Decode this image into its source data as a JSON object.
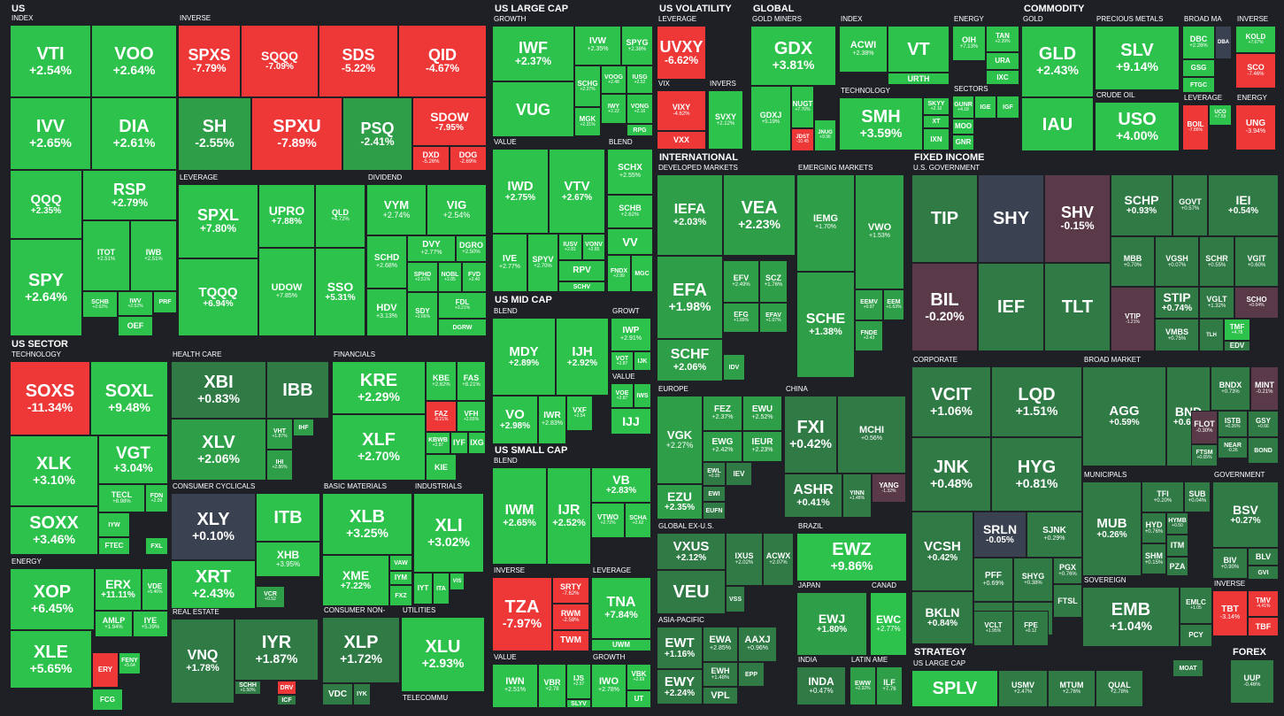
{
  "colors": {
    "up_strong": "#2dc24c",
    "up_mid": "#2f9e48",
    "up_weak": "#2f7a45",
    "flat": "#3a4150",
    "down_weak": "#5a3a48",
    "down_mid": "#c43b3b",
    "down_strong": "#ee3838",
    "background": "#1e2026"
  },
  "sectors": [
    {
      "label": "US"
    },
    {
      "label": "US LARGE CAP"
    },
    {
      "label": "US VOLATILITY"
    },
    {
      "label": "GLOBAL"
    },
    {
      "label": "COMMODITY"
    },
    {
      "label": "US SECTOR"
    },
    {
      "label": "INTERNATIONAL"
    },
    {
      "label": "FIXED INCOME"
    },
    {
      "label": "US MID CAP"
    },
    {
      "label": "US SMALL CAP"
    },
    {
      "label": "STRATEGY"
    },
    {
      "label": "FOREX"
    }
  ],
  "groups": [
    {
      "label": "INDEX"
    },
    {
      "label": "INVERSE"
    },
    {
      "label": "LEVERAGE"
    },
    {
      "label": "DIVIDEND"
    },
    {
      "label": "GROWTH"
    },
    {
      "label": "VALUE"
    },
    {
      "label": "BLEND"
    },
    {
      "label": "LEVERAGE"
    },
    {
      "label": "VIX"
    },
    {
      "label": "INVERS"
    },
    {
      "label": "GOLD MINERS"
    },
    {
      "label": "INDEX"
    },
    {
      "label": "TECHNOLOGY"
    },
    {
      "label": "ENERGY"
    },
    {
      "label": "SECTORS"
    },
    {
      "label": "GOLD"
    },
    {
      "label": "PRECIOUS METALS"
    },
    {
      "label": "CRUDE OIL"
    },
    {
      "label": "BROAD MA"
    },
    {
      "label": "LEVERAGE"
    },
    {
      "label": "INVERSE"
    },
    {
      "label": "ENERGY"
    },
    {
      "label": "TECHNOLOGY"
    },
    {
      "label": "HEALTH CARE"
    },
    {
      "label": "FINANCIALS"
    },
    {
      "label": "ENERGY"
    },
    {
      "label": "CONSUMER CYCLICALS"
    },
    {
      "label": "BASIC MATERIALS"
    },
    {
      "label": "INDUSTRIALS"
    },
    {
      "label": "REAL ESTATE"
    },
    {
      "label": "CONSUMER NON-"
    },
    {
      "label": "UTILITIES"
    },
    {
      "label": "TELECOMMU"
    },
    {
      "label": "BLEND"
    },
    {
      "label": "GROWT"
    },
    {
      "label": "VALUE"
    },
    {
      "label": "BLEND"
    },
    {
      "label": "INVERSE"
    },
    {
      "label": "LEVERAGE"
    },
    {
      "label": "VALUE"
    },
    {
      "label": "GROWTH"
    },
    {
      "label": "DEVELOPED MARKETS"
    },
    {
      "label": "EMERGING MARKETS"
    },
    {
      "label": "EUROPE"
    },
    {
      "label": "CHINA"
    },
    {
      "label": "GLOBAL EX-U.S."
    },
    {
      "label": "BRAZIL"
    },
    {
      "label": "JAPAN"
    },
    {
      "label": "CANAD"
    },
    {
      "label": "ASIA-PACIFIC"
    },
    {
      "label": "INDIA"
    },
    {
      "label": "LATIN AME"
    },
    {
      "label": "U.S. GOVERNMENT"
    },
    {
      "label": "CORPORATE"
    },
    {
      "label": "BROAD MARKET"
    },
    {
      "label": "MUNICIPALS"
    },
    {
      "label": "GOVERNMENT"
    },
    {
      "label": "SOVEREIGN"
    },
    {
      "label": "INVERSE"
    },
    {
      "label": "US LARGE CAP"
    }
  ],
  "tiles": [
    {
      "t": "VTI",
      "p": "+2.54%"
    },
    {
      "t": "VOO",
      "p": "+2.64%"
    },
    {
      "t": "IVV",
      "p": "+2.65%"
    },
    {
      "t": "DIA",
      "p": "+2.61%"
    },
    {
      "t": "QQQ",
      "p": "+2.35%"
    },
    {
      "t": "RSP",
      "p": "+2.79%"
    },
    {
      "t": "ITOT",
      "p": "+2.51%"
    },
    {
      "t": "IWB",
      "p": "+2.51%"
    },
    {
      "t": "SPY",
      "p": "+2.64%"
    },
    {
      "t": "SCHB",
      "p": "+2.62%"
    },
    {
      "t": "IWV",
      "p": "+2.52%"
    },
    {
      "t": "PRF",
      "p": ""
    },
    {
      "t": "OEF",
      "p": ""
    },
    {
      "t": "SPXS",
      "p": "-7.79%"
    },
    {
      "t": "SQQQ",
      "p": "-7.09%"
    },
    {
      "t": "SDS",
      "p": "-5.22%"
    },
    {
      "t": "QID",
      "p": "-4.67%"
    },
    {
      "t": "SH",
      "p": "-2.55%"
    },
    {
      "t": "SPXU",
      "p": "-7.89%"
    },
    {
      "t": "PSQ",
      "p": "-2.41%"
    },
    {
      "t": "SDOW",
      "p": "-7.95%"
    },
    {
      "t": "DXD",
      "p": "-5.26%"
    },
    {
      "t": "DOG",
      "p": "-2.69%"
    },
    {
      "t": "SPXL",
      "p": "+7.80%"
    },
    {
      "t": "UPRO",
      "p": "+7.88%"
    },
    {
      "t": "QLD",
      "p": "+4.72%"
    },
    {
      "t": "TQQQ",
      "p": "+6.94%"
    },
    {
      "t": "UDOW",
      "p": "+7.85%"
    },
    {
      "t": "SSO",
      "p": "+5.31%"
    },
    {
      "t": "VYM",
      "p": "+2.74%"
    },
    {
      "t": "VIG",
      "p": "+2.54%"
    },
    {
      "t": "SCHD",
      "p": "+2.68%"
    },
    {
      "t": "DVY",
      "p": "+2.77%"
    },
    {
      "t": "DGRO",
      "p": "+2.50%"
    },
    {
      "t": "SPHD",
      "p": "+2.51%"
    },
    {
      "t": "NOBL",
      "p": "+2.85"
    },
    {
      "t": "FVD",
      "p": "+2.40"
    },
    {
      "t": "HDV",
      "p": "+3.13%"
    },
    {
      "t": "SDY",
      "p": "+2.66%"
    },
    {
      "t": "FDL",
      "p": "+3.21%"
    },
    {
      "t": "DGRW",
      "p": ""
    },
    {
      "t": "IWF",
      "p": "+2.37%"
    },
    {
      "t": "IVW",
      "p": "+2.35%"
    },
    {
      "t": "SPYG",
      "p": "+2.38%"
    },
    {
      "t": "VUG",
      "p": ""
    },
    {
      "t": "SCHG",
      "p": "+2.37%"
    },
    {
      "t": "VOOG",
      "p": "+2.48"
    },
    {
      "t": "IUSG",
      "p": "+2.52"
    },
    {
      "t": "MGK",
      "p": "+2.31%"
    },
    {
      "t": "IWY",
      "p": "+2.22"
    },
    {
      "t": "VONG",
      "p": "+2.16"
    },
    {
      "t": "RPG",
      "p": ""
    },
    {
      "t": "IWD",
      "p": "+2.75%"
    },
    {
      "t": "VTV",
      "p": "+2.67%"
    },
    {
      "t": "IVE",
      "p": "+2.77%"
    },
    {
      "t": "SPYV",
      "p": "+2.70%"
    },
    {
      "t": "IUSV",
      "p": "+2.81"
    },
    {
      "t": "VONV",
      "p": "+2.65"
    },
    {
      "t": "RPV",
      "p": ""
    },
    {
      "t": "SCHV",
      "p": ""
    },
    {
      "t": "SCHX",
      "p": "+2.55%"
    },
    {
      "t": "SCHB",
      "p": "+2.62%"
    },
    {
      "t": "VV",
      "p": ""
    },
    {
      "t": "FNDX",
      "p": "+2.99"
    },
    {
      "t": "MGC",
      "p": ""
    },
    {
      "t": "UVXY",
      "p": "-6.62%"
    },
    {
      "t": "VIXY",
      "p": "-4.62%"
    },
    {
      "t": "VXX",
      "p": ""
    },
    {
      "t": "SVXY",
      "p": "+2.12%"
    },
    {
      "t": "GDX",
      "p": "+3.81%"
    },
    {
      "t": "GDXJ",
      "p": "+5.19%"
    },
    {
      "t": "NUGT",
      "p": "+7.70%"
    },
    {
      "t": "JDST",
      "p": "-10.45"
    },
    {
      "t": "JNUG",
      "p": "+9.96"
    },
    {
      "t": "ACWI",
      "p": "+2.38%"
    },
    {
      "t": "VT",
      "p": ""
    },
    {
      "t": "URTH",
      "p": ""
    },
    {
      "t": "SMH",
      "p": "+3.59%"
    },
    {
      "t": "SKYY",
      "p": "+2.10"
    },
    {
      "t": "XT",
      "p": ""
    },
    {
      "t": "IXN",
      "p": ""
    },
    {
      "t": "OIH",
      "p": "+7.13%"
    },
    {
      "t": "TAN",
      "p": "+2.39%"
    },
    {
      "t": "URA",
      "p": ""
    },
    {
      "t": "IXC",
      "p": ""
    },
    {
      "t": "GUNR",
      "p": "+4.18"
    },
    {
      "t": "IGE",
      "p": ""
    },
    {
      "t": "IGF",
      "p": ""
    },
    {
      "t": "MOO",
      "p": ""
    },
    {
      "t": "GNR",
      "p": ""
    },
    {
      "t": "GLD",
      "p": "+2.43%"
    },
    {
      "t": "IAU",
      "p": ""
    },
    {
      "t": "SLV",
      "p": "+9.14%"
    },
    {
      "t": "USO",
      "p": "+4.00%"
    },
    {
      "t": "DBC",
      "p": "+2.26%"
    },
    {
      "t": "DBA",
      "p": ""
    },
    {
      "t": "GSG",
      "p": ""
    },
    {
      "t": "FTGC",
      "p": ""
    },
    {
      "t": "BOIL",
      "p": "-7.86%"
    },
    {
      "t": "UCO",
      "p": "+7.59"
    },
    {
      "t": "KOLD",
      "p": "+7.67%"
    },
    {
      "t": "SCO",
      "p": "-7.46%"
    },
    {
      "t": "UNG",
      "p": "-3.94%"
    },
    {
      "t": "SOXS",
      "p": "-11.34%"
    },
    {
      "t": "SOXL",
      "p": "+9.48%"
    },
    {
      "t": "XLK",
      "p": "+3.10%"
    },
    {
      "t": "VGT",
      "p": "+3.04%"
    },
    {
      "t": "TECL",
      "p": "+8.98%"
    },
    {
      "t": "FDN",
      "p": "+2.09"
    },
    {
      "t": "SOXX",
      "p": "+3.46%"
    },
    {
      "t": "IYW",
      "p": ""
    },
    {
      "t": "FTEC",
      "p": ""
    },
    {
      "t": "FXL",
      "p": ""
    },
    {
      "t": "XBI",
      "p": "+0.83%"
    },
    {
      "t": "IBB",
      "p": ""
    },
    {
      "t": "XLV",
      "p": "+2.06%"
    },
    {
      "t": "VHT",
      "p": "+1.87%"
    },
    {
      "t": "IHF",
      "p": ""
    },
    {
      "t": "IHI",
      "p": "+2.86%"
    },
    {
      "t": "KRE",
      "p": "+2.29%"
    },
    {
      "t": "KBE",
      "p": "+2.62%"
    },
    {
      "t": "FAS",
      "p": "+8.21%"
    },
    {
      "t": "XLF",
      "p": "+2.70%"
    },
    {
      "t": "FAZ",
      "p": "-8.21%"
    },
    {
      "t": "VFH",
      "p": "+2.65%"
    },
    {
      "t": "KBWB",
      "p": "+2.87"
    },
    {
      "t": "IYF",
      "p": ""
    },
    {
      "t": "IXG",
      "p": ""
    },
    {
      "t": "KIE",
      "p": ""
    },
    {
      "t": "XOP",
      "p": "+6.45%"
    },
    {
      "t": "ERX",
      "p": "+11.11%"
    },
    {
      "t": "VDE",
      "p": "+5.46%"
    },
    {
      "t": "AMLP",
      "p": "+1.94%"
    },
    {
      "t": "IYE",
      "p": "+5.39%"
    },
    {
      "t": "XLE",
      "p": "+5.65%"
    },
    {
      "t": "ERY",
      "p": ""
    },
    {
      "t": "FENY",
      "p": "+5.64"
    },
    {
      "t": "FCG",
      "p": ""
    },
    {
      "t": "XLY",
      "p": "+0.10%"
    },
    {
      "t": "ITB",
      "p": ""
    },
    {
      "t": "XHB",
      "p": "+3.95%"
    },
    {
      "t": "XRT",
      "p": "+2.43%"
    },
    {
      "t": "VCR",
      "p": "+0.52"
    },
    {
      "t": "XLB",
      "p": "+3.25%"
    },
    {
      "t": "XME",
      "p": "+7.22%"
    },
    {
      "t": "VAW",
      "p": ""
    },
    {
      "t": "IYM",
      "p": ""
    },
    {
      "t": "FXZ",
      "p": ""
    },
    {
      "t": "XLI",
      "p": "+3.02%"
    },
    {
      "t": "IYT",
      "p": ""
    },
    {
      "t": "ITA",
      "p": ""
    },
    {
      "t": "VIS",
      "p": ""
    },
    {
      "t": "VNQ",
      "p": "+1.78%"
    },
    {
      "t": "IYR",
      "p": "+1.87%"
    },
    {
      "t": "SCHH",
      "p": "+1.50%"
    },
    {
      "t": "DRV",
      "p": ""
    },
    {
      "t": "ICF",
      "p": ""
    },
    {
      "t": "XLP",
      "p": "+1.72%"
    },
    {
      "t": "VDC",
      "p": ""
    },
    {
      "t": "IYK",
      "p": ""
    },
    {
      "t": "XLU",
      "p": "+2.93%"
    },
    {
      "t": "MDY",
      "p": "+2.89%"
    },
    {
      "t": "IJH",
      "p": "+2.92%"
    },
    {
      "t": "VO",
      "p": "+2.98%"
    },
    {
      "t": "IWR",
      "p": "+2.83%"
    },
    {
      "t": "VXF",
      "p": "+2.54"
    },
    {
      "t": "IWP",
      "p": "+2.91%"
    },
    {
      "t": "VOT",
      "p": "+2.87"
    },
    {
      "t": "IJK",
      "p": ""
    },
    {
      "t": "VOE",
      "p": "+2.87"
    },
    {
      "t": "IWS",
      "p": ""
    },
    {
      "t": "IJJ",
      "p": ""
    },
    {
      "t": "IWM",
      "p": "+2.65%"
    },
    {
      "t": "IJR",
      "p": "+2.52%"
    },
    {
      "t": "VB",
      "p": "+2.83%"
    },
    {
      "t": "VTWO",
      "p": "+2.72%"
    },
    {
      "t": "SCHA",
      "p": "+2.62"
    },
    {
      "t": "TZA",
      "p": "-7.97%"
    },
    {
      "t": "SRTY",
      "p": "-7.62%"
    },
    {
      "t": "RWM",
      "p": "-2.58%"
    },
    {
      "t": "TWM",
      "p": ""
    },
    {
      "t": "TNA",
      "p": "+7.84%"
    },
    {
      "t": "UWM",
      "p": ""
    },
    {
      "t": "IWN",
      "p": "+2.51%"
    },
    {
      "t": "VBR",
      "p": "+2.78"
    },
    {
      "t": "IJS",
      "p": "+2.57"
    },
    {
      "t": "SLYV",
      "p": ""
    },
    {
      "t": "IWO",
      "p": "+2.78%"
    },
    {
      "t": "VBK",
      "p": "+2.69"
    },
    {
      "t": "UT",
      "p": ""
    },
    {
      "t": "IEFA",
      "p": "+2.03%"
    },
    {
      "t": "VEA",
      "p": "+2.23%"
    },
    {
      "t": "EFA",
      "p": "+1.98%"
    },
    {
      "t": "EFV",
      "p": "+2.49%"
    },
    {
      "t": "SCZ",
      "p": "+1.76%"
    },
    {
      "t": "EFG",
      "p": "+1.89%"
    },
    {
      "t": "EFAV",
      "p": "+1.07%"
    },
    {
      "t": "SCHF",
      "p": "+2.06%"
    },
    {
      "t": "IDV",
      "p": ""
    },
    {
      "t": "IEMG",
      "p": "+1.70%"
    },
    {
      "t": "VWO",
      "p": "+1.53%"
    },
    {
      "t": "SCHE",
      "p": "+1.38%"
    },
    {
      "t": "EEMV",
      "p": "+0.97"
    },
    {
      "t": "EEM",
      "p": "+1.63%"
    },
    {
      "t": "FNDE",
      "p": "+2.43"
    },
    {
      "t": "VGK",
      "p": "+2.27%"
    },
    {
      "t": "FEZ",
      "p": "+2.37%"
    },
    {
      "t": "EWU",
      "p": "+2.52%"
    },
    {
      "t": "EWG",
      "p": "+2.42%"
    },
    {
      "t": "IEUR",
      "p": "+2.23%"
    },
    {
      "t": "EZU",
      "p": "+2.35%"
    },
    {
      "t": "EWL",
      "p": "+0.35"
    },
    {
      "t": "IEV",
      "p": ""
    },
    {
      "t": "EWI",
      "p": ""
    },
    {
      "t": "EUFN",
      "p": ""
    },
    {
      "t": "FXI",
      "p": "+0.42%"
    },
    {
      "t": "MCHI",
      "p": "+0.56%"
    },
    {
      "t": "ASHR",
      "p": "+0.41%"
    },
    {
      "t": "YINN",
      "p": "+1.48%"
    },
    {
      "t": "YANG",
      "p": "-1.32%"
    },
    {
      "t": "VXUS",
      "p": "+2.12%"
    },
    {
      "t": "IXUS",
      "p": "+2.02%"
    },
    {
      "t": "ACWX",
      "p": "+2.07%"
    },
    {
      "t": "VEU",
      "p": ""
    },
    {
      "t": "VSS",
      "p": ""
    },
    {
      "t": "EWZ",
      "p": "+9.86%"
    },
    {
      "t": "EWJ",
      "p": "+1.80%"
    },
    {
      "t": "EWC",
      "p": "+2.77%"
    },
    {
      "t": "EWT",
      "p": "+1.16%"
    },
    {
      "t": "EWA",
      "p": "+2.85%"
    },
    {
      "t": "AAXJ",
      "p": "+0.96%"
    },
    {
      "t": "EWY",
      "p": "+2.24%"
    },
    {
      "t": "EWH",
      "p": "+1.48%"
    },
    {
      "t": "EPP",
      "p": ""
    },
    {
      "t": "VPL",
      "p": ""
    },
    {
      "t": "INDA",
      "p": "+0.47%"
    },
    {
      "t": "EWW",
      "p": "+2.32%"
    },
    {
      "t": "ILF",
      "p": "+7.76"
    },
    {
      "t": "TIP",
      "p": ""
    },
    {
      "t": "SHY",
      "p": ""
    },
    {
      "t": "SHV",
      "p": "-0.15%"
    },
    {
      "t": "SCHP",
      "p": "+0.93%"
    },
    {
      "t": "GOVT",
      "p": "+0.57%"
    },
    {
      "t": "IEI",
      "p": "+0.54%"
    },
    {
      "t": "BIL",
      "p": "-0.20%"
    },
    {
      "t": "IEF",
      "p": ""
    },
    {
      "t": "TLT",
      "p": ""
    },
    {
      "t": "MBB",
      "p": "+0.70%"
    },
    {
      "t": "VGSH",
      "p": "+0.07%"
    },
    {
      "t": "SCHR",
      "p": "+0.55%"
    },
    {
      "t": "VGIT",
      "p": "+0.60%"
    },
    {
      "t": "STIP",
      "p": "+0.74%"
    },
    {
      "t": "VGLT",
      "p": "+1.32%"
    },
    {
      "t": "SCHO",
      "p": "+0.04%"
    },
    {
      "t": "VTIP",
      "p": "-1.21%"
    },
    {
      "t": "VMBS",
      "p": "+0.75%"
    },
    {
      "t": "TLH",
      "p": ""
    },
    {
      "t": "TMF",
      "p": "+4.78"
    },
    {
      "t": "EDV",
      "p": ""
    },
    {
      "t": "VCIT",
      "p": "+1.06%"
    },
    {
      "t": "LQD",
      "p": "+1.51%"
    },
    {
      "t": "JNK",
      "p": "+0.48%"
    },
    {
      "t": "HYG",
      "p": "+0.81%"
    },
    {
      "t": "VCSH",
      "p": "+0.42%"
    },
    {
      "t": "SRLN",
      "p": "-0.05%"
    },
    {
      "t": "SJNK",
      "p": "+0.29%"
    },
    {
      "t": "PFF",
      "p": "+0.69%"
    },
    {
      "t": "SHYG",
      "p": "+0.38%"
    },
    {
      "t": "PGX",
      "p": "+0.76%"
    },
    {
      "t": "HYS",
      "p": "+0.80"
    },
    {
      "t": "CWB",
      "p": ""
    },
    {
      "t": "FTSL",
      "p": ""
    },
    {
      "t": "BKLN",
      "p": "+0.84%"
    },
    {
      "t": "VCLT",
      "p": "+1.95%"
    },
    {
      "t": "FPE",
      "p": "+0.12"
    },
    {
      "t": "AGG",
      "p": "+0.59%"
    },
    {
      "t": "BND",
      "p": "+0.62%"
    },
    {
      "t": "BNDX",
      "p": "+0.73%"
    },
    {
      "t": "MINT",
      "p": "-0.21%"
    },
    {
      "t": "FLOT",
      "p": "-0.30%"
    },
    {
      "t": "ISTB",
      "p": "+0.26%"
    },
    {
      "t": "GSY",
      "p": "+0.66"
    },
    {
      "t": "NEAR",
      "p": "-0.26"
    },
    {
      "t": "FTSM",
      "p": "+0.05%"
    },
    {
      "t": "BOND",
      "p": ""
    },
    {
      "t": "MUB",
      "p": "+0.26%"
    },
    {
      "t": "TFI",
      "p": "+0.20%"
    },
    {
      "t": "SUB",
      "p": "+0.04%"
    },
    {
      "t": "HYD",
      "p": "+0.76%"
    },
    {
      "t": "HYMB",
      "p": "+0.50"
    },
    {
      "t": "ITM",
      "p": ""
    },
    {
      "t": "SHM",
      "p": "+0.15%"
    },
    {
      "t": "PZA",
      "p": ""
    },
    {
      "t": "BSV",
      "p": "+0.27%"
    },
    {
      "t": "BIV",
      "p": "+0.90%"
    },
    {
      "t": "BLV",
      "p": ""
    },
    {
      "t": "GVI",
      "p": ""
    },
    {
      "t": "EMB",
      "p": "+1.04%"
    },
    {
      "t": "EMLC",
      "p": "+1.05"
    },
    {
      "t": "PCY",
      "p": ""
    },
    {
      "t": "TBT",
      "p": "-3.14%"
    },
    {
      "t": "TMV",
      "p": "-4.41%"
    },
    {
      "t": "TBF",
      "p": ""
    },
    {
      "t": "SPLV",
      "p": ""
    },
    {
      "t": "USMV",
      "p": "+2.47%"
    },
    {
      "t": "MTUM",
      "p": "+2.76%"
    },
    {
      "t": "QUAL",
      "p": "+2.78%"
    },
    {
      "t": "MOAT",
      "p": ""
    },
    {
      "t": "UUP",
      "p": "-0.46%"
    }
  ]
}
